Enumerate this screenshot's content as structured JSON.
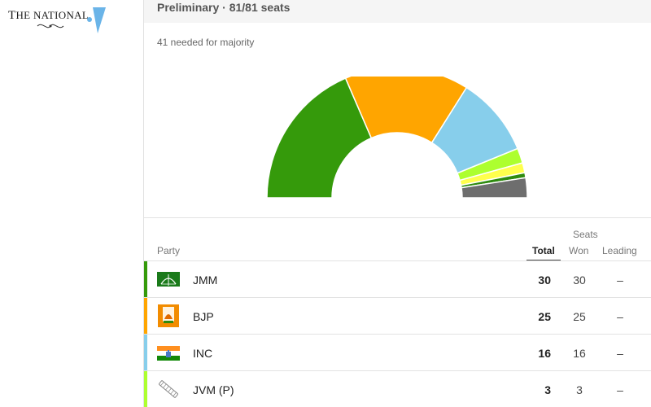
{
  "logo": {
    "text_prefix": "T",
    "text_main": "HE NATIONAL"
  },
  "header": {
    "title": "Preliminary · 81/81 seats"
  },
  "majority_note": "41 needed for majority",
  "colors": {
    "JMM": "#359a0b",
    "BJP": "#ffa500",
    "INC": "#87ceeb",
    "JVM": "#adff2f",
    "AJSU": "#ffff4d",
    "minor": "#2e8b0f",
    "others": "#6e6e6e"
  },
  "chart_data": {
    "type": "pie",
    "subtype": "half-donut (parliament hemicycle)",
    "total_seats": 81,
    "majority": 41,
    "slices": [
      {
        "label": "JMM",
        "value": 30,
        "color": "#359a0b"
      },
      {
        "label": "BJP",
        "value": 25,
        "color": "#ffa500"
      },
      {
        "label": "INC",
        "value": 16,
        "color": "#87ceeb"
      },
      {
        "label": "JVM (P)",
        "value": 3,
        "color": "#adff2f"
      },
      {
        "value": 2,
        "color": "#ffff4d"
      },
      {
        "value": 1,
        "color": "#2e8b0f"
      },
      {
        "value": 4,
        "color": "#6e6e6e"
      }
    ]
  },
  "table": {
    "headers": {
      "party": "Party",
      "seats": "Seats",
      "total": "Total",
      "won": "Won",
      "leading": "Leading"
    },
    "rows": [
      {
        "party": "JMM",
        "total": "30",
        "won": "30",
        "leading": "–",
        "color": "#359a0b",
        "symbol": "bow-and-arrow-icon"
      },
      {
        "party": "BJP",
        "total": "25",
        "won": "25",
        "leading": "–",
        "color": "#ffa500",
        "symbol": "lotus-icon"
      },
      {
        "party": "INC",
        "total": "16",
        "won": "16",
        "leading": "–",
        "color": "#87ceeb",
        "symbol": "hand-icon"
      },
      {
        "party": "JVM (P)",
        "total": "3",
        "won": "3",
        "leading": "–",
        "color": "#adff2f",
        "symbol": "comb-icon"
      }
    ]
  }
}
